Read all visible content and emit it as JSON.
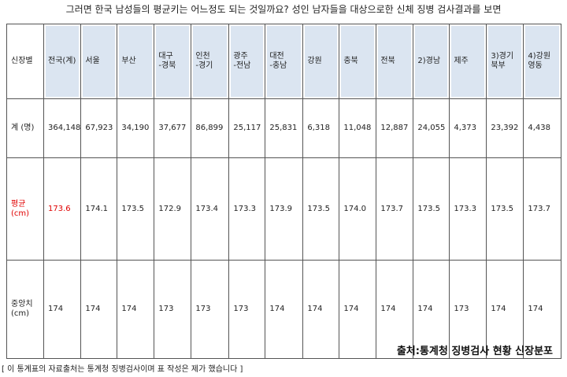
{
  "caption": "그러면 한국 남성들의 평균키는 어느정도 되는 것일까요? 성인 남자들을 대상으로한 신체 징병 검사결과를 보면",
  "table": {
    "header": [
      "신장별",
      "전국(계)",
      "서울",
      "부산",
      "대구\n-경북",
      "인천\n-경기",
      "광주\n-전남",
      "대전\n-충남",
      "강원",
      "충북",
      "전북",
      "2)경남",
      "제주",
      "3)경기\n북부",
      "4)강원\n영동"
    ],
    "rows": [
      [
        "계 (명)",
        "364,148",
        "67,923",
        "34,190",
        "37,677",
        "86,899",
        "25,117",
        "25,831",
        "6,318",
        "11,048",
        "12,887",
        "24,055",
        "4,373",
        "23,392",
        "4,438"
      ],
      [
        "평균\n(cm)",
        "173.6",
        "174.1",
        "173.5",
        "172.9",
        "173.4",
        "173.3",
        "173.9",
        "173.5",
        "174.0",
        "173.7",
        "173.5",
        "173.3",
        "173.5",
        "173.7"
      ],
      [
        "중앙치\n(cm)",
        "174",
        "174",
        "174",
        "173",
        "173",
        "173",
        "174",
        "174",
        "174",
        "174",
        "174",
        "173",
        "174",
        "174"
      ]
    ]
  },
  "source": "출처:통계청 징병검사 현황 신장분포",
  "footnote": "[ 이 통계표의 자료출처는 통계청 징병검사이며 표 작성은 제가 했습니다 ]"
}
